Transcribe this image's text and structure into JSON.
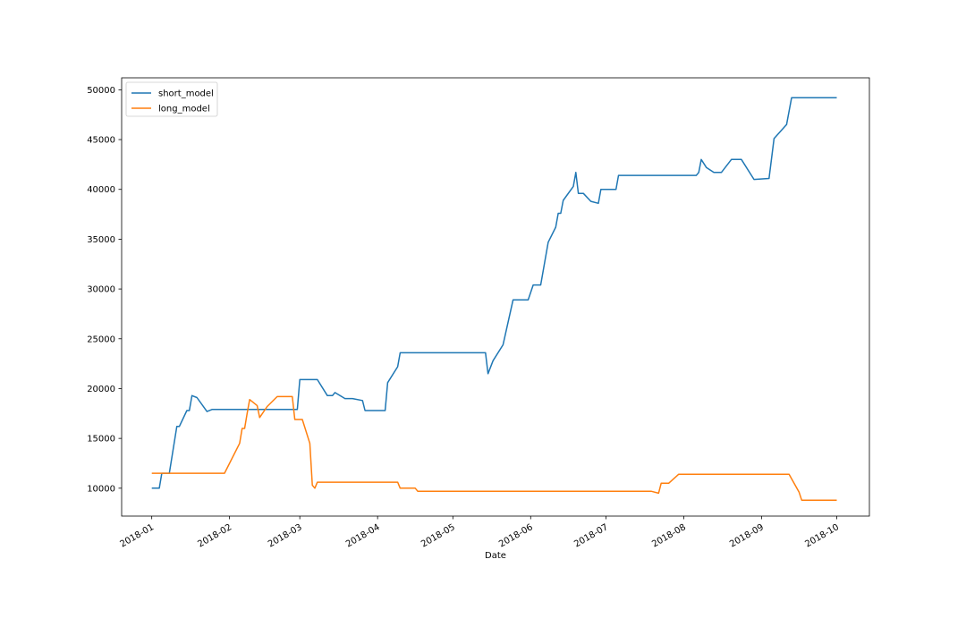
{
  "chart_data": {
    "type": "line",
    "xlabel": "Date",
    "ylabel": "",
    "title": "",
    "x_type": "date",
    "xlim": [
      "2017-12-20",
      "2018-10-14"
    ],
    "ylim": [
      7200,
      51200
    ],
    "x_ticks": [
      "2018-01",
      "2018-02",
      "2018-03",
      "2018-04",
      "2018-05",
      "2018-06",
      "2018-07",
      "2018-08",
      "2018-09",
      "2018-10"
    ],
    "y_ticks": [
      "10000",
      "15000",
      "20000",
      "25000",
      "30000",
      "35000",
      "40000",
      "45000",
      "50000"
    ],
    "legend": {
      "position": "upper-left",
      "entries": [
        "short_model",
        "long_model"
      ]
    },
    "grid": false,
    "series": [
      {
        "name": "short_model",
        "color": "#1f77b4",
        "points": [
          [
            "2018-01-01",
            10000
          ],
          [
            "2018-01-04",
            10000
          ],
          [
            "2018-01-05",
            11500
          ],
          [
            "2018-01-08",
            11500
          ],
          [
            "2018-01-11",
            16200
          ],
          [
            "2018-01-12",
            16200
          ],
          [
            "2018-01-15",
            17800
          ],
          [
            "2018-01-16",
            17800
          ],
          [
            "2018-01-17",
            19300
          ],
          [
            "2018-01-19",
            19100
          ],
          [
            "2018-01-23",
            17700
          ],
          [
            "2018-01-25",
            17900
          ],
          [
            "2018-02-28",
            17900
          ],
          [
            "2018-03-01",
            20900
          ],
          [
            "2018-03-08",
            20900
          ],
          [
            "2018-03-12",
            19300
          ],
          [
            "2018-03-14",
            19300
          ],
          [
            "2018-03-15",
            19600
          ],
          [
            "2018-03-19",
            19000
          ],
          [
            "2018-03-22",
            19000
          ],
          [
            "2018-03-26",
            18800
          ],
          [
            "2018-03-27",
            17800
          ],
          [
            "2018-04-04",
            17800
          ],
          [
            "2018-04-05",
            20600
          ],
          [
            "2018-04-09",
            22200
          ],
          [
            "2018-04-10",
            23600
          ],
          [
            "2018-05-14",
            23600
          ],
          [
            "2018-05-15",
            21500
          ],
          [
            "2018-05-17",
            22800
          ],
          [
            "2018-05-21",
            24400
          ],
          [
            "2018-05-25",
            28900
          ],
          [
            "2018-05-31",
            28900
          ],
          [
            "2018-06-02",
            30400
          ],
          [
            "2018-06-05",
            30400
          ],
          [
            "2018-06-08",
            34700
          ],
          [
            "2018-06-11",
            36200
          ],
          [
            "2018-06-12",
            37600
          ],
          [
            "2018-06-13",
            37600
          ],
          [
            "2018-06-14",
            38900
          ],
          [
            "2018-06-18",
            40300
          ],
          [
            "2018-06-19",
            41700
          ],
          [
            "2018-06-20",
            39600
          ],
          [
            "2018-06-22",
            39600
          ],
          [
            "2018-06-25",
            38800
          ],
          [
            "2018-06-28",
            38600
          ],
          [
            "2018-06-29",
            40000
          ],
          [
            "2018-07-05",
            40000
          ],
          [
            "2018-07-06",
            41400
          ],
          [
            "2018-08-06",
            41400
          ],
          [
            "2018-08-07",
            41700
          ],
          [
            "2018-08-08",
            43000
          ],
          [
            "2018-08-10",
            42200
          ],
          [
            "2018-08-13",
            41700
          ],
          [
            "2018-08-16",
            41700
          ],
          [
            "2018-08-20",
            43000
          ],
          [
            "2018-08-24",
            43000
          ],
          [
            "2018-08-29",
            41000
          ],
          [
            "2018-09-04",
            41100
          ],
          [
            "2018-09-06",
            45100
          ],
          [
            "2018-09-11",
            46500
          ],
          [
            "2018-09-13",
            49200
          ],
          [
            "2018-10-01",
            49200
          ]
        ]
      },
      {
        "name": "long_model",
        "color": "#ff7f0e",
        "points": [
          [
            "2018-01-01",
            11500
          ],
          [
            "2018-01-30",
            11500
          ],
          [
            "2018-02-05",
            14500
          ],
          [
            "2018-02-06",
            16000
          ],
          [
            "2018-02-07",
            16000
          ],
          [
            "2018-02-08",
            17500
          ],
          [
            "2018-02-09",
            18900
          ],
          [
            "2018-02-12",
            18300
          ],
          [
            "2018-02-13",
            17100
          ],
          [
            "2018-02-16",
            18200
          ],
          [
            "2018-02-20",
            19200
          ],
          [
            "2018-02-26",
            19200
          ],
          [
            "2018-02-27",
            16900
          ],
          [
            "2018-03-02",
            16900
          ],
          [
            "2018-03-05",
            14500
          ],
          [
            "2018-03-06",
            10300
          ],
          [
            "2018-03-07",
            10000
          ],
          [
            "2018-03-08",
            10600
          ],
          [
            "2018-04-09",
            10600
          ],
          [
            "2018-04-10",
            10000
          ],
          [
            "2018-04-16",
            10000
          ],
          [
            "2018-04-17",
            9700
          ],
          [
            "2018-07-19",
            9700
          ],
          [
            "2018-07-22",
            9500
          ],
          [
            "2018-07-23",
            10500
          ],
          [
            "2018-07-26",
            10500
          ],
          [
            "2018-07-30",
            11400
          ],
          [
            "2018-09-12",
            11400
          ],
          [
            "2018-09-16",
            9600
          ],
          [
            "2018-09-17",
            8800
          ],
          [
            "2018-10-01",
            8800
          ]
        ]
      }
    ]
  }
}
